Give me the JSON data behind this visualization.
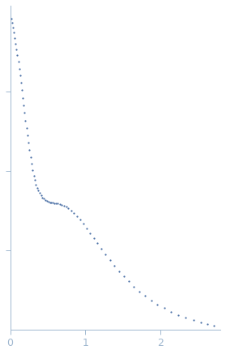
{
  "title": "",
  "xlabel": "",
  "ylabel": "",
  "xlim": [
    0,
    2.8
  ],
  "dot_color": "#4a6fa5",
  "dot_size": 2.5,
  "axis_color": "#a0b8d0",
  "tick_color": "#a0b8d0",
  "background_color": "#ffffff",
  "xticks": [
    0,
    1,
    2
  ],
  "xtick_labels": [
    "0",
    "1",
    "2"
  ],
  "ytick_positions": [
    0.25,
    0.5,
    0.75
  ],
  "x": [
    0.012,
    0.024,
    0.036,
    0.048,
    0.06,
    0.072,
    0.084,
    0.096,
    0.108,
    0.12,
    0.132,
    0.144,
    0.156,
    0.168,
    0.18,
    0.192,
    0.204,
    0.216,
    0.228,
    0.24,
    0.255,
    0.27,
    0.285,
    0.3,
    0.315,
    0.33,
    0.345,
    0.36,
    0.375,
    0.39,
    0.41,
    0.43,
    0.45,
    0.47,
    0.49,
    0.51,
    0.53,
    0.55,
    0.57,
    0.59,
    0.61,
    0.635,
    0.66,
    0.685,
    0.715,
    0.745,
    0.775,
    0.81,
    0.85,
    0.89,
    0.93,
    0.975,
    1.02,
    1.065,
    1.115,
    1.165,
    1.215,
    1.27,
    1.33,
    1.39,
    1.45,
    1.515,
    1.58,
    1.65,
    1.725,
    1.8,
    1.88,
    1.96,
    2.05,
    2.14,
    2.24,
    2.34,
    2.44,
    2.54,
    2.63,
    2.71
  ],
  "y": [
    0.98,
    0.965,
    0.95,
    0.935,
    0.918,
    0.9,
    0.882,
    0.863,
    0.843,
    0.822,
    0.8,
    0.777,
    0.754,
    0.73,
    0.706,
    0.682,
    0.658,
    0.634,
    0.611,
    0.589,
    0.565,
    0.542,
    0.521,
    0.502,
    0.485,
    0.47,
    0.457,
    0.446,
    0.437,
    0.43,
    0.422,
    0.416,
    0.412,
    0.408,
    0.405,
    0.403,
    0.401,
    0.4,
    0.399,
    0.398,
    0.397,
    0.396,
    0.395,
    0.393,
    0.39,
    0.386,
    0.381,
    0.375,
    0.367,
    0.357,
    0.346,
    0.333,
    0.319,
    0.304,
    0.288,
    0.271,
    0.255,
    0.237,
    0.219,
    0.201,
    0.184,
    0.167,
    0.151,
    0.135,
    0.119,
    0.105,
    0.091,
    0.079,
    0.067,
    0.056,
    0.046,
    0.037,
    0.029,
    0.022,
    0.016,
    0.011
  ]
}
